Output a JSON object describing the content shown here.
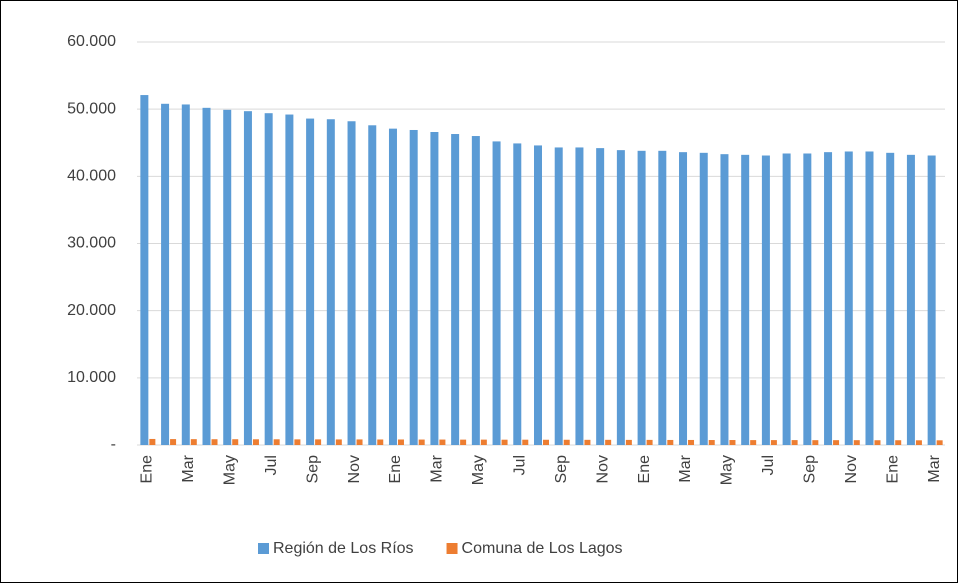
{
  "chart_data": {
    "type": "bar",
    "categories": [
      "Ene",
      null,
      "Mar",
      null,
      "May",
      null,
      "Jul",
      null,
      "Sep",
      null,
      "Nov",
      null,
      "Ene",
      null,
      "Mar",
      null,
      "May",
      null,
      "Jul",
      null,
      "Sep",
      null,
      "Nov",
      null,
      "Ene",
      null,
      "Mar",
      null,
      "May",
      null,
      "Jul",
      null,
      "Sep",
      null,
      "Nov",
      null,
      "Ene",
      null,
      "Mar"
    ],
    "series": [
      {
        "name": "Región de Los Ríos",
        "color": "#5b9bd5",
        "values": [
          52100,
          50800,
          50700,
          50200,
          49900,
          49700,
          49400,
          49200,
          48600,
          48500,
          48200,
          47600,
          47100,
          46900,
          46600,
          46300,
          46000,
          45200,
          44900,
          44600,
          44300,
          44300,
          44200,
          43900,
          43800,
          43800,
          43600,
          43500,
          43300,
          43200,
          43100,
          43400,
          43400,
          43600,
          43700,
          43700,
          43500,
          43200,
          43100
        ]
      },
      {
        "name": "Comuna de Los Lagos",
        "color": "#ed7d31",
        "values": [
          900,
          880,
          870,
          860,
          860,
          850,
          850,
          840,
          840,
          830,
          830,
          820,
          820,
          810,
          810,
          800,
          800,
          790,
          790,
          780,
          780,
          770,
          770,
          760,
          760,
          750,
          750,
          740,
          740,
          730,
          730,
          730,
          720,
          720,
          720,
          710,
          710,
          700,
          700
        ]
      }
    ],
    "ylim": [
      0,
      60000
    ],
    "yticks": [
      {
        "value": 0,
        "label": "-"
      },
      {
        "value": 10000,
        "label": "10.000"
      },
      {
        "value": 20000,
        "label": "20.000"
      },
      {
        "value": 30000,
        "label": "30.000"
      },
      {
        "value": 40000,
        "label": "40.000"
      },
      {
        "value": 50000,
        "label": "50.000"
      },
      {
        "value": 60000,
        "label": "60.000"
      }
    ],
    "grid": true,
    "legend": "bottom"
  }
}
